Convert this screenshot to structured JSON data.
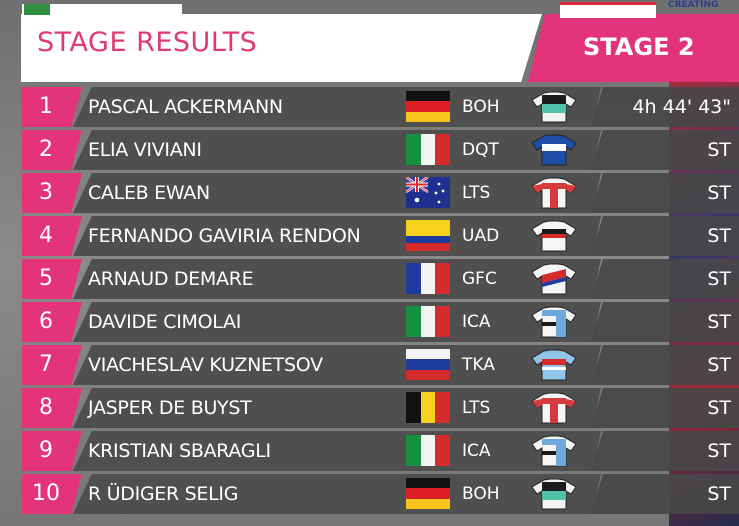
{
  "header": {
    "title": "STAGE RESULTS",
    "stage_label": "STAGE 2"
  },
  "colors": {
    "accent": "#e3337a",
    "row_bg": "#4f4f50"
  },
  "results": [
    {
      "rank": "1",
      "name": "PASCAL ACKERMANN",
      "flag": "germany",
      "team": "BOH",
      "jersey": "boh-jersey-icon",
      "time": "4h 44' 43\""
    },
    {
      "rank": "2",
      "name": "ELIA VIVIANI",
      "flag": "italy",
      "team": "DQT",
      "jersey": "dqt-jersey-icon",
      "time": "ST"
    },
    {
      "rank": "3",
      "name": "CALEB EWAN",
      "flag": "australia",
      "team": "LTS",
      "jersey": "lts-jersey-icon",
      "time": "ST"
    },
    {
      "rank": "4",
      "name": "FERNANDO GAVIRIA RENDON",
      "flag": "colombia",
      "team": "UAD",
      "jersey": "uad-jersey-icon",
      "time": "ST"
    },
    {
      "rank": "5",
      "name": "ARNAUD DEMARE",
      "flag": "france",
      "team": "GFC",
      "jersey": "gfc-jersey-icon",
      "time": "ST"
    },
    {
      "rank": "6",
      "name": "DAVIDE CIMOLAI",
      "flag": "italy",
      "team": "ICA",
      "jersey": "ica-jersey-icon",
      "time": "ST"
    },
    {
      "rank": "7",
      "name": "VIACHESLAV KUZNETSOV",
      "flag": "russia",
      "team": "TKA",
      "jersey": "tka-jersey-icon",
      "time": "ST"
    },
    {
      "rank": "8",
      "name": "JASPER DE BUYST",
      "flag": "belgium",
      "team": "LTS",
      "jersey": "lts-jersey-icon",
      "time": "ST"
    },
    {
      "rank": "9",
      "name": "KRISTIAN SBARAGLI",
      "flag": "italy",
      "team": "ICA",
      "jersey": "ica-jersey-icon",
      "time": "ST"
    },
    {
      "rank": "10",
      "name": "R  ÜDIGER SELIG",
      "flag": "germany",
      "team": "BOH",
      "jersey": "boh-jersey-icon",
      "time": "ST"
    }
  ],
  "footer": {
    "right_text": "CREATING"
  }
}
